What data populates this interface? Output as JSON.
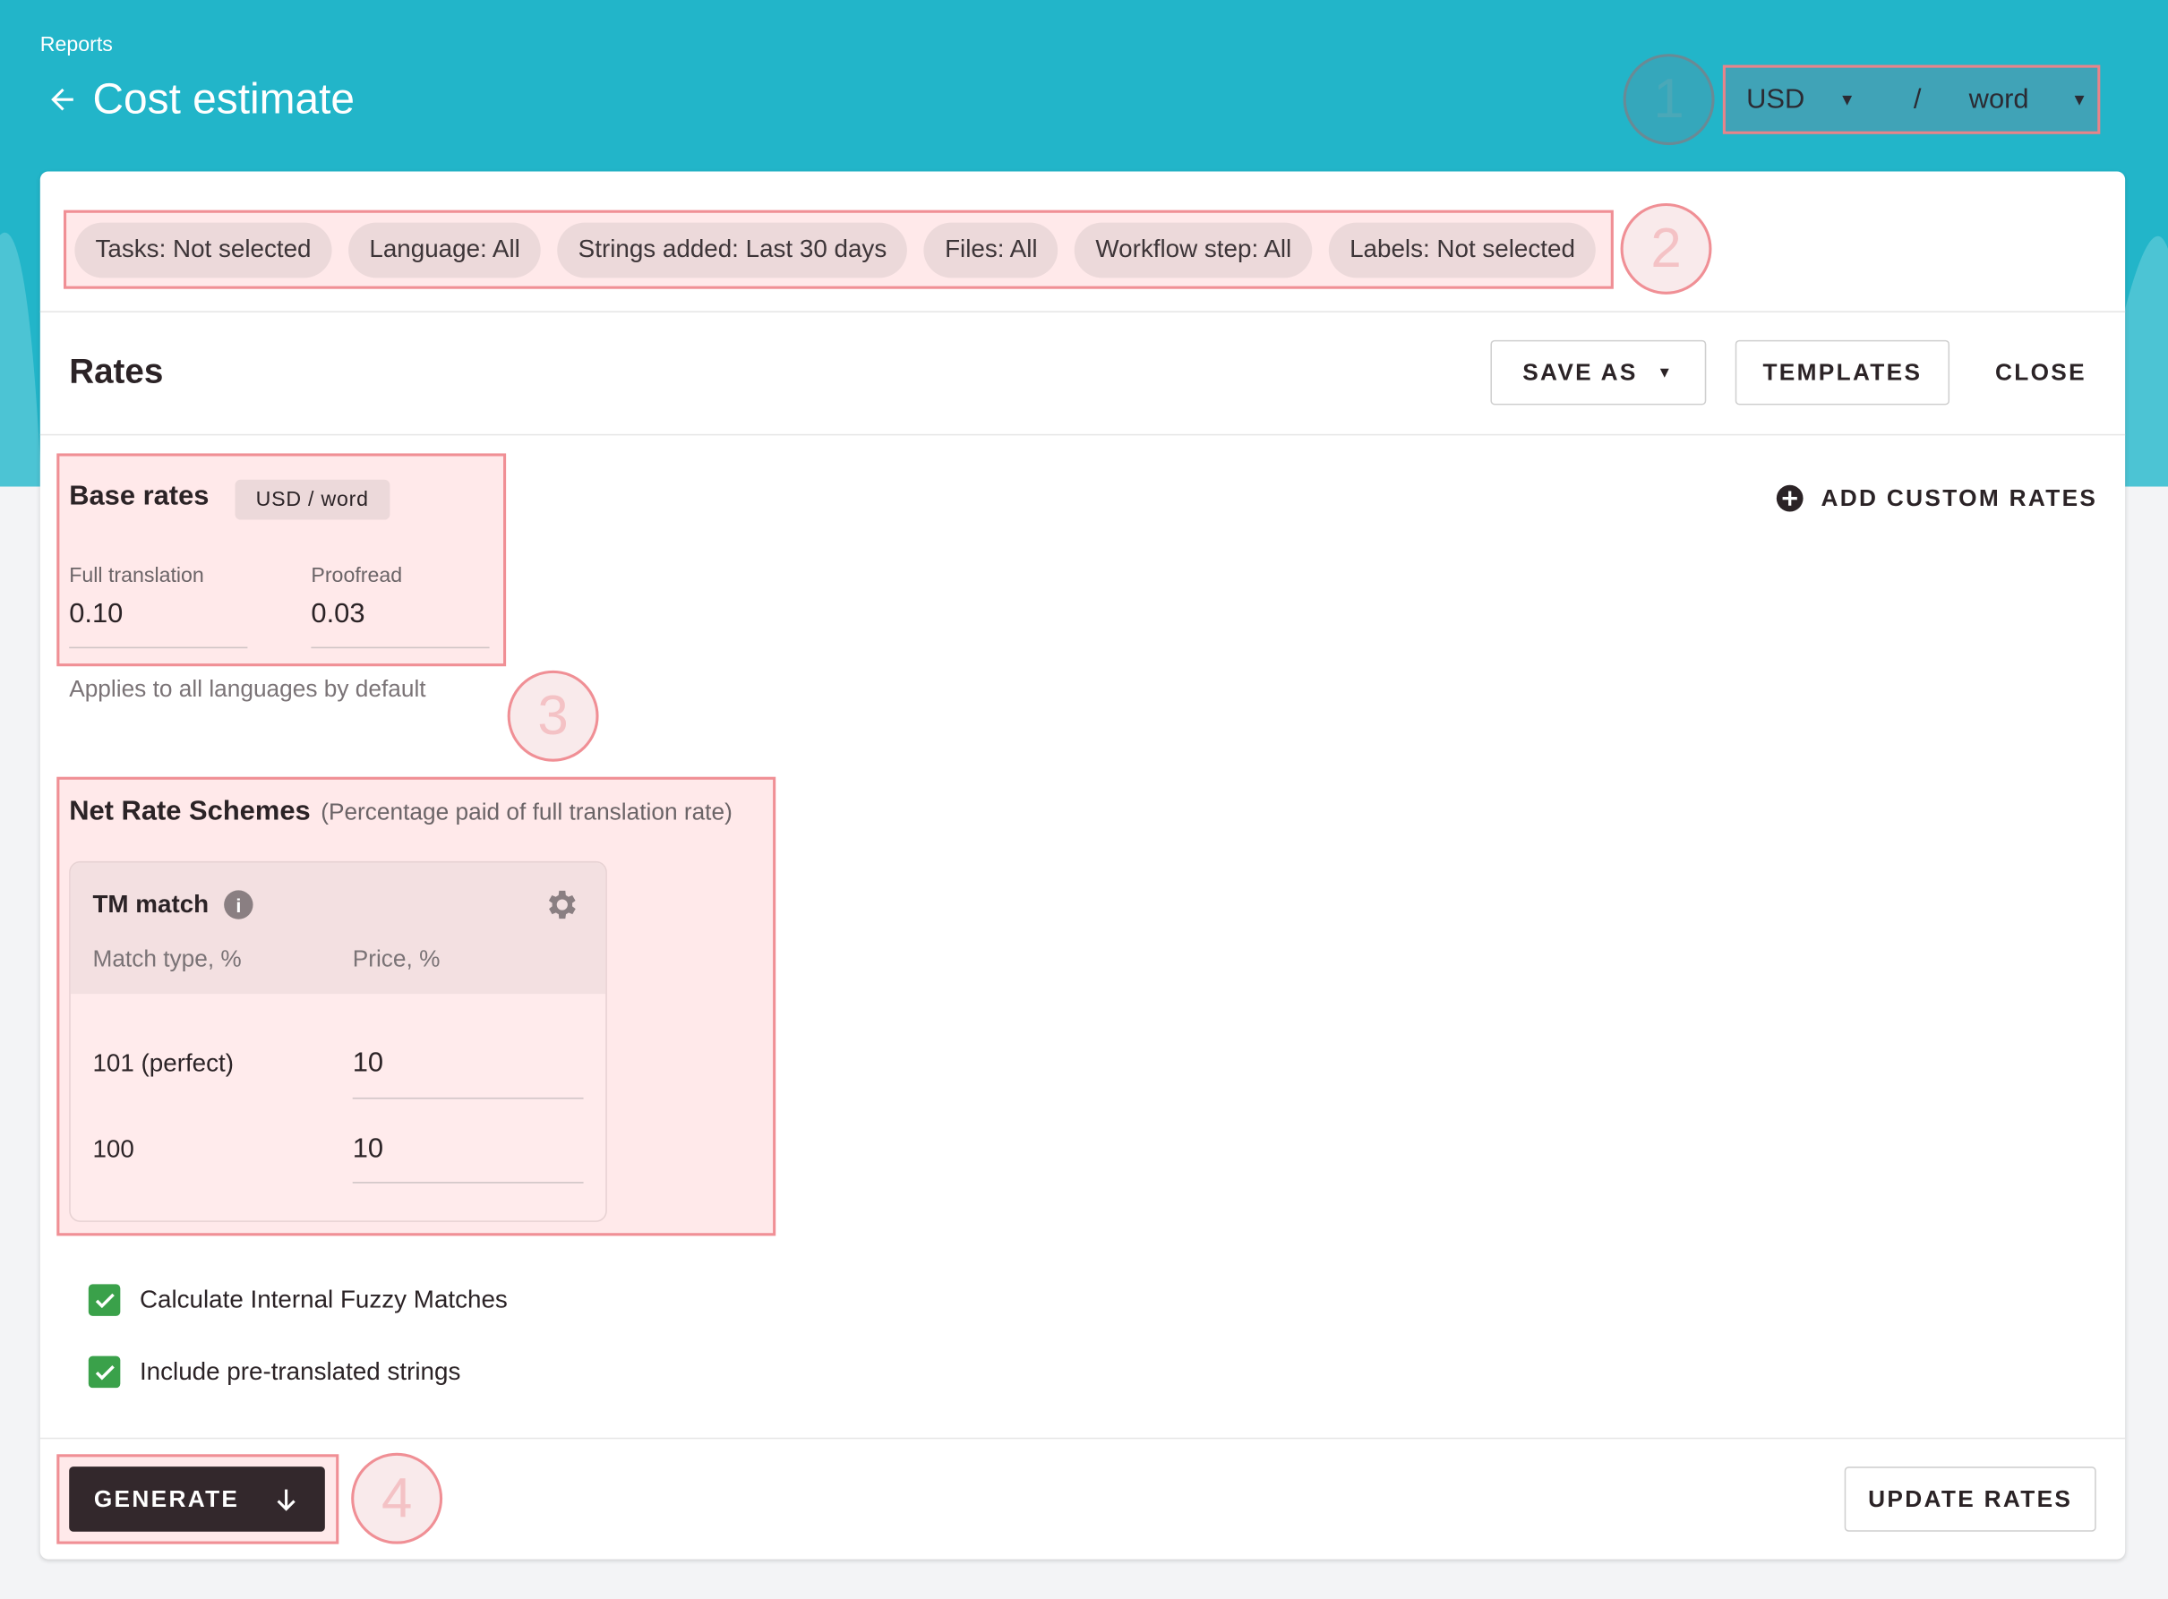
{
  "header": {
    "breadcrumb": "Reports",
    "title": "Cost estimate",
    "currency": "USD",
    "separator": "/",
    "unit": "word"
  },
  "badges": [
    "1",
    "2",
    "3",
    "4"
  ],
  "filters": [
    "Tasks: Not selected",
    "Language: All",
    "Strings added: Last 30 days",
    "Files: All",
    "Workflow step: All",
    "Labels: Not selected"
  ],
  "rates": {
    "title": "Rates",
    "save_as": "SAVE AS",
    "templates": "TEMPLATES",
    "close": "CLOSE",
    "add_custom": "ADD CUSTOM RATES"
  },
  "base_rates": {
    "title": "Base rates",
    "unit_chip": "USD / word",
    "full_label": "Full translation",
    "full_value": "0.10",
    "proof_label": "Proofread",
    "proof_value": "0.03",
    "hint": "Applies to all languages by default"
  },
  "net_rates": {
    "title": "Net Rate Schemes",
    "subtitle": "(Percentage paid of full translation rate)",
    "card_title": "TM match",
    "col_match": "Match type, %",
    "col_price": "Price, %",
    "rows": [
      {
        "match": "101 (perfect)",
        "price": "10"
      },
      {
        "match": "100",
        "price": "10"
      }
    ]
  },
  "options": [
    {
      "label": "Calculate Internal Fuzzy Matches",
      "checked": true
    },
    {
      "label": "Include pre-translated strings",
      "checked": true
    }
  ],
  "footer": {
    "generate": "GENERATE",
    "update_rates": "UPDATE RATES"
  },
  "colors": {
    "header": "#22b5c9",
    "highlight": "#f08f95",
    "check": "#3aa14a",
    "primary_button": "#33282c"
  }
}
